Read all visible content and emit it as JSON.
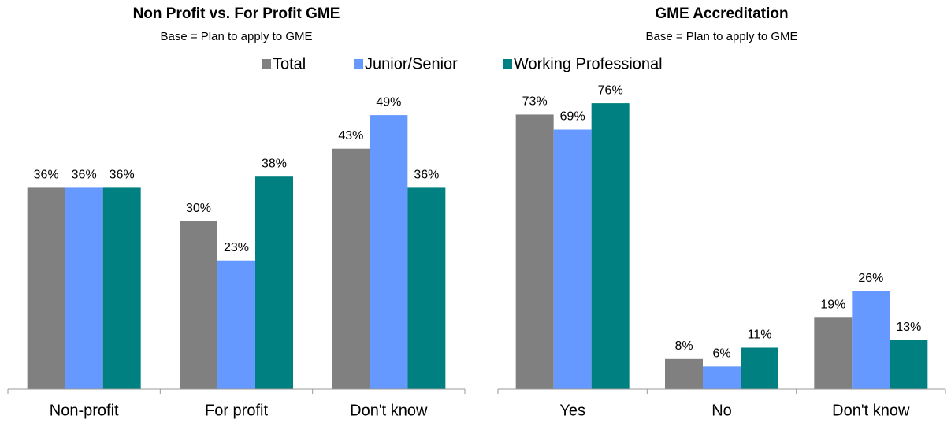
{
  "chart_data": [
    {
      "type": "bar",
      "title": "Non Profit vs. For Profit GME",
      "subtitle": "Base = Plan to apply to GME",
      "categories": [
        "Non-profit",
        "For profit",
        "Don't know"
      ],
      "ylim": [
        0,
        50
      ],
      "series": [
        {
          "name": "Total",
          "color": "#808080",
          "values": [
            36,
            30,
            43
          ],
          "value_labels": [
            "36%",
            "30%",
            "43%"
          ]
        },
        {
          "name": "Junior/Senior",
          "color": "#6699ff",
          "values": [
            36,
            23,
            49
          ],
          "value_labels": [
            "36%",
            "23%",
            "49%"
          ]
        },
        {
          "name": "Working Professional",
          "color": "#008080",
          "values": [
            36,
            38,
            36
          ],
          "value_labels": [
            "36%",
            "38%",
            "36%"
          ]
        }
      ]
    },
    {
      "type": "bar",
      "title": "GME Accreditation",
      "subtitle": "Base = Plan to apply to GME",
      "categories": [
        "Yes",
        "No",
        "Don't know"
      ],
      "ylim": [
        0,
        80
      ],
      "series": [
        {
          "color": "#808080",
          "values": [
            73,
            8,
            19
          ],
          "value_labels": [
            "73%",
            "8%",
            "19%"
          ]
        },
        {
          "color": "#6699ff",
          "values": [
            69,
            6,
            26
          ],
          "value_labels": [
            "69%",
            "6%",
            "26%"
          ]
        },
        {
          "color": "#008080",
          "values": [
            76,
            11,
            13
          ],
          "value_labels": [
            "76%",
            "11%",
            "13%"
          ]
        }
      ]
    }
  ]
}
